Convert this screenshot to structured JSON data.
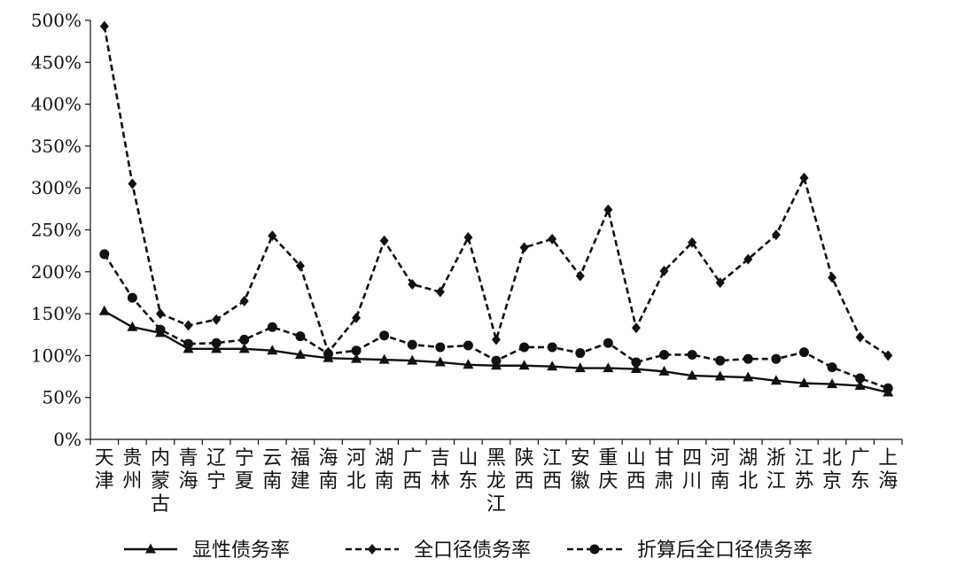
{
  "chart_data": {
    "type": "line",
    "title": "",
    "xlabel": "",
    "ylabel": "",
    "ylim": [
      0,
      500
    ],
    "yticks": [
      "0%",
      "50%",
      "100%",
      "150%",
      "200%",
      "250%",
      "300%",
      "350%",
      "400%",
      "450%",
      "500%"
    ],
    "ytick_values": [
      0,
      50,
      100,
      150,
      200,
      250,
      300,
      350,
      400,
      450,
      500
    ],
    "grid": false,
    "legend_position": "bottom",
    "categories": [
      "天津",
      "贵州",
      "内蒙古",
      "青海",
      "辽宁",
      "宁夏",
      "云南",
      "福建",
      "海南",
      "河北",
      "湖南",
      "广西",
      "吉林",
      "山东",
      "黑龙江",
      "陕西",
      "江西",
      "安徽",
      "重庆",
      "山西",
      "甘肃",
      "四川",
      "河南",
      "湖北",
      "浙江",
      "江苏",
      "北京",
      "广东",
      "上海"
    ],
    "series": [
      {
        "name": "显性债务率",
        "line": "solid",
        "marker": "triangle",
        "values": [
          153,
          134,
          127,
          108,
          108,
          108,
          106,
          101,
          97,
          96,
          95,
          94,
          92,
          89,
          88,
          88,
          87,
          85,
          85,
          84,
          81,
          76,
          75,
          74,
          70,
          67,
          66,
          64,
          56
        ]
      },
      {
        "name": "全口径债务率",
        "line": "dashed",
        "marker": "diamond",
        "values": [
          493,
          305,
          150,
          136,
          143,
          165,
          243,
          207,
          104,
          145,
          237,
          185,
          176,
          241,
          119,
          229,
          239,
          195,
          274,
          133,
          201,
          235,
          187,
          215,
          244,
          312,
          193,
          122,
          100
        ]
      },
      {
        "name": "折算后全口径债务率",
        "line": "dashed",
        "marker": "circle",
        "values": [
          221,
          169,
          131,
          114,
          115,
          119,
          134,
          123,
          102,
          106,
          124,
          113,
          110,
          112,
          94,
          110,
          110,
          103,
          115,
          92,
          101,
          101,
          94,
          96,
          96,
          104,
          86,
          73,
          61
        ]
      }
    ]
  }
}
